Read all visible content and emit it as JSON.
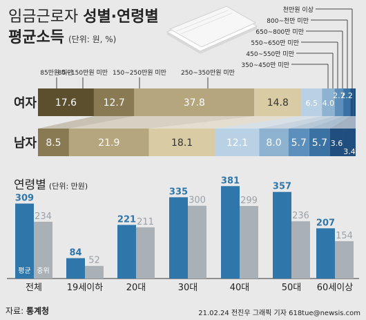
{
  "title": {
    "line1_thin": "임금근로자 ",
    "line1_bold": "성별·연령별",
    "line2": "평균소득",
    "unit": "(단위: 원, %)"
  },
  "colors": {
    "brackets": [
      "#5b4f2e",
      "#8a7a54",
      "#b6a67e",
      "#d9cca4",
      "#b9d1e5",
      "#8db3d1",
      "#5c8fbb",
      "#3a72a3",
      "#1f4e7f"
    ],
    "avg_bar": "#2f77aa",
    "median_bar": "#a9b0b6",
    "background": "#e9e9e9"
  },
  "chart_data": [
    {
      "type": "bar",
      "orientation": "horizontal-stacked",
      "categories": [
        "여자",
        "남자"
      ],
      "legend_top": [
        "85만원 미만",
        "85~150만원 미만",
        "150~250만원 미만",
        "250~350만원 미만"
      ],
      "legend_right": [
        "천만원 이상",
        "800~천만 미만",
        "650~800만 미만",
        "550~650만 미만",
        "450~550만 미만",
        "350~450만 미만"
      ],
      "series": [
        {
          "name": "85만원 미만",
          "values": [
            17.6,
            0
          ],
          "labels": [
            "17.6",
            ""
          ]
        },
        {
          "name": "85~150만원 미만",
          "values": [
            12.7,
            8.5
          ],
          "labels": [
            "12.7",
            "8.5"
          ]
        },
        {
          "name": "150~250만원 미만",
          "values": [
            37.8,
            21.9
          ],
          "labels": [
            "37.8",
            "21.9"
          ]
        },
        {
          "name": "250~350만원 미만",
          "values": [
            14.8,
            18.1
          ],
          "labels": [
            "14.8",
            "18.1"
          ]
        },
        {
          "name": "350~450만원 미만",
          "values": [
            6.5,
            12.1
          ],
          "labels": [
            "6.5",
            "12.1"
          ]
        },
        {
          "name": "450~550만원 미만",
          "values": [
            4.0,
            8.0
          ],
          "labels": [
            "4.0",
            "8.0"
          ]
        },
        {
          "name": "550~650만원 미만",
          "values": [
            2.7,
            5.7
          ],
          "labels": [
            "2.7",
            "5.7"
          ]
        },
        {
          "name": "650~800만원 미만",
          "values": [
            2.2,
            5.7
          ],
          "labels": [
            "2.2",
            "5.7"
          ]
        },
        {
          "name": "800~천만원 미만",
          "values": [
            1.0,
            3.6
          ],
          "labels": [
            "",
            "3.6"
          ]
        },
        {
          "name": "천만원 이상",
          "values": [
            0.7,
            3.4
          ],
          "labels": [
            "",
            "3.4"
          ]
        }
      ]
    },
    {
      "type": "bar",
      "title": "연령별",
      "unit": "(단위: 만원)",
      "categories": [
        "전체",
        "19세이하",
        "20대",
        "30대",
        "40대",
        "50대",
        "60세이상"
      ],
      "series": [
        {
          "name": "평균",
          "values": [
            309,
            84,
            221,
            335,
            381,
            357,
            207
          ]
        },
        {
          "name": "중위",
          "values": [
            234,
            52,
            211,
            300,
            299,
            236,
            154
          ]
        }
      ],
      "ylim": [
        0,
        400
      ]
    }
  ],
  "footer": {
    "source_label": "자료: ",
    "source": "통계청",
    "credit": "21.02.24 전진우 그래픽 기자 618tue@newsis.com"
  }
}
